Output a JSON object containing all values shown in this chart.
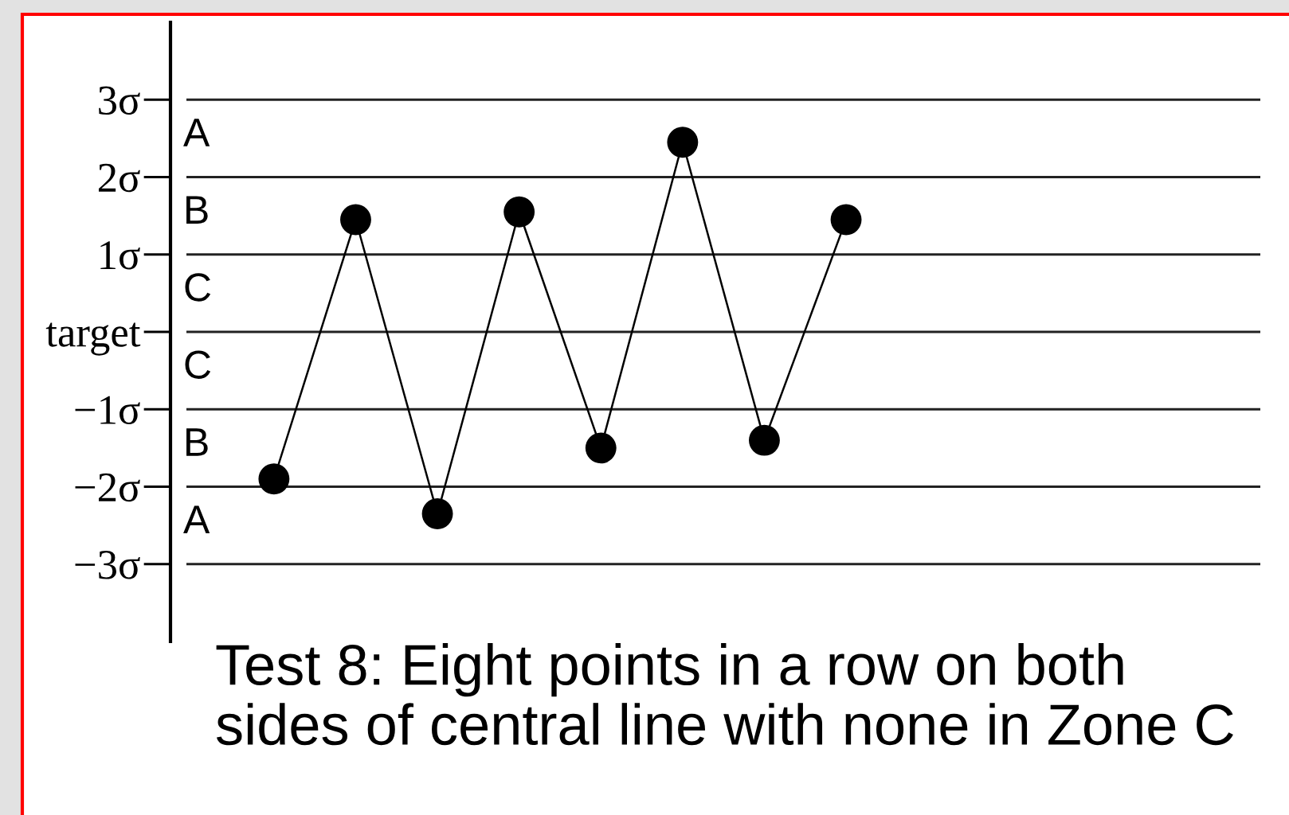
{
  "chart_data": {
    "type": "line",
    "categories": [
      null,
      null,
      null,
      null,
      null,
      null,
      null,
      null
    ],
    "series": [
      {
        "color": "#000000",
        "values": [
          -1.9,
          1.45,
          -2.35,
          1.55,
          -1.5,
          2.45,
          -1.4,
          1.45
        ]
      }
    ],
    "ylim": [
      -4,
      4
    ],
    "yticks": [
      {
        "value": -3,
        "label": "−3σ"
      },
      {
        "value": -2,
        "label": "−2σ"
      },
      {
        "value": -1,
        "label": "−1σ"
      },
      {
        "value": 0,
        "label": "target"
      },
      {
        "value": 1,
        "label": "1σ"
      },
      {
        "value": 2,
        "label": "2σ"
      },
      {
        "value": 3,
        "label": "3σ"
      }
    ],
    "grid": "y",
    "marker": "circle",
    "line_style": "solid",
    "tick_labels": "y",
    "annotations": [
      "A",
      "B",
      "C",
      "C",
      "B",
      "A",
      "Test 8: Eight points in a row on both\nsides of central line with none in Zone C"
    ]
  }
}
